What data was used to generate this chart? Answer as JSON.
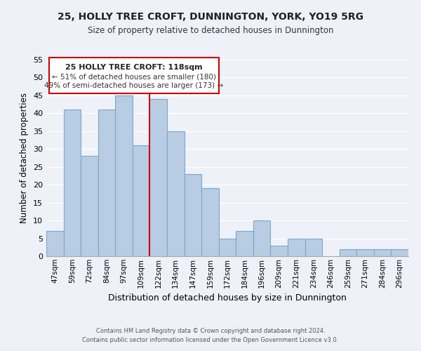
{
  "title": "25, HOLLY TREE CROFT, DUNNINGTON, YORK, YO19 5RG",
  "subtitle": "Size of property relative to detached houses in Dunnington",
  "xlabel": "Distribution of detached houses by size in Dunnington",
  "ylabel": "Number of detached properties",
  "bar_labels": [
    "47sqm",
    "59sqm",
    "72sqm",
    "84sqm",
    "97sqm",
    "109sqm",
    "122sqm",
    "134sqm",
    "147sqm",
    "159sqm",
    "172sqm",
    "184sqm",
    "196sqm",
    "209sqm",
    "221sqm",
    "234sqm",
    "246sqm",
    "259sqm",
    "271sqm",
    "284sqm",
    "296sqm"
  ],
  "bar_values": [
    7,
    41,
    28,
    41,
    45,
    31,
    44,
    35,
    23,
    19,
    5,
    7,
    10,
    3,
    5,
    5,
    0,
    2,
    2,
    2,
    2
  ],
  "bar_color": "#b8cce4",
  "bar_edge_color": "#7da6cc",
  "reference_line_x": 6,
  "reference_line_color": "#cc0000",
  "ylim": [
    0,
    55
  ],
  "yticks": [
    0,
    5,
    10,
    15,
    20,
    25,
    30,
    35,
    40,
    45,
    50,
    55
  ],
  "annotation_title": "25 HOLLY TREE CROFT: 118sqm",
  "annotation_line1": "← 51% of detached houses are smaller (180)",
  "annotation_line2": "49% of semi-detached houses are larger (173) →",
  "annotation_box_color": "#ffffff",
  "annotation_box_edge": "#cc0000",
  "footer_line1": "Contains HM Land Registry data © Crown copyright and database right 2024.",
  "footer_line2": "Contains public sector information licensed under the Open Government Licence v3.0.",
  "background_color": "#eef2f8"
}
